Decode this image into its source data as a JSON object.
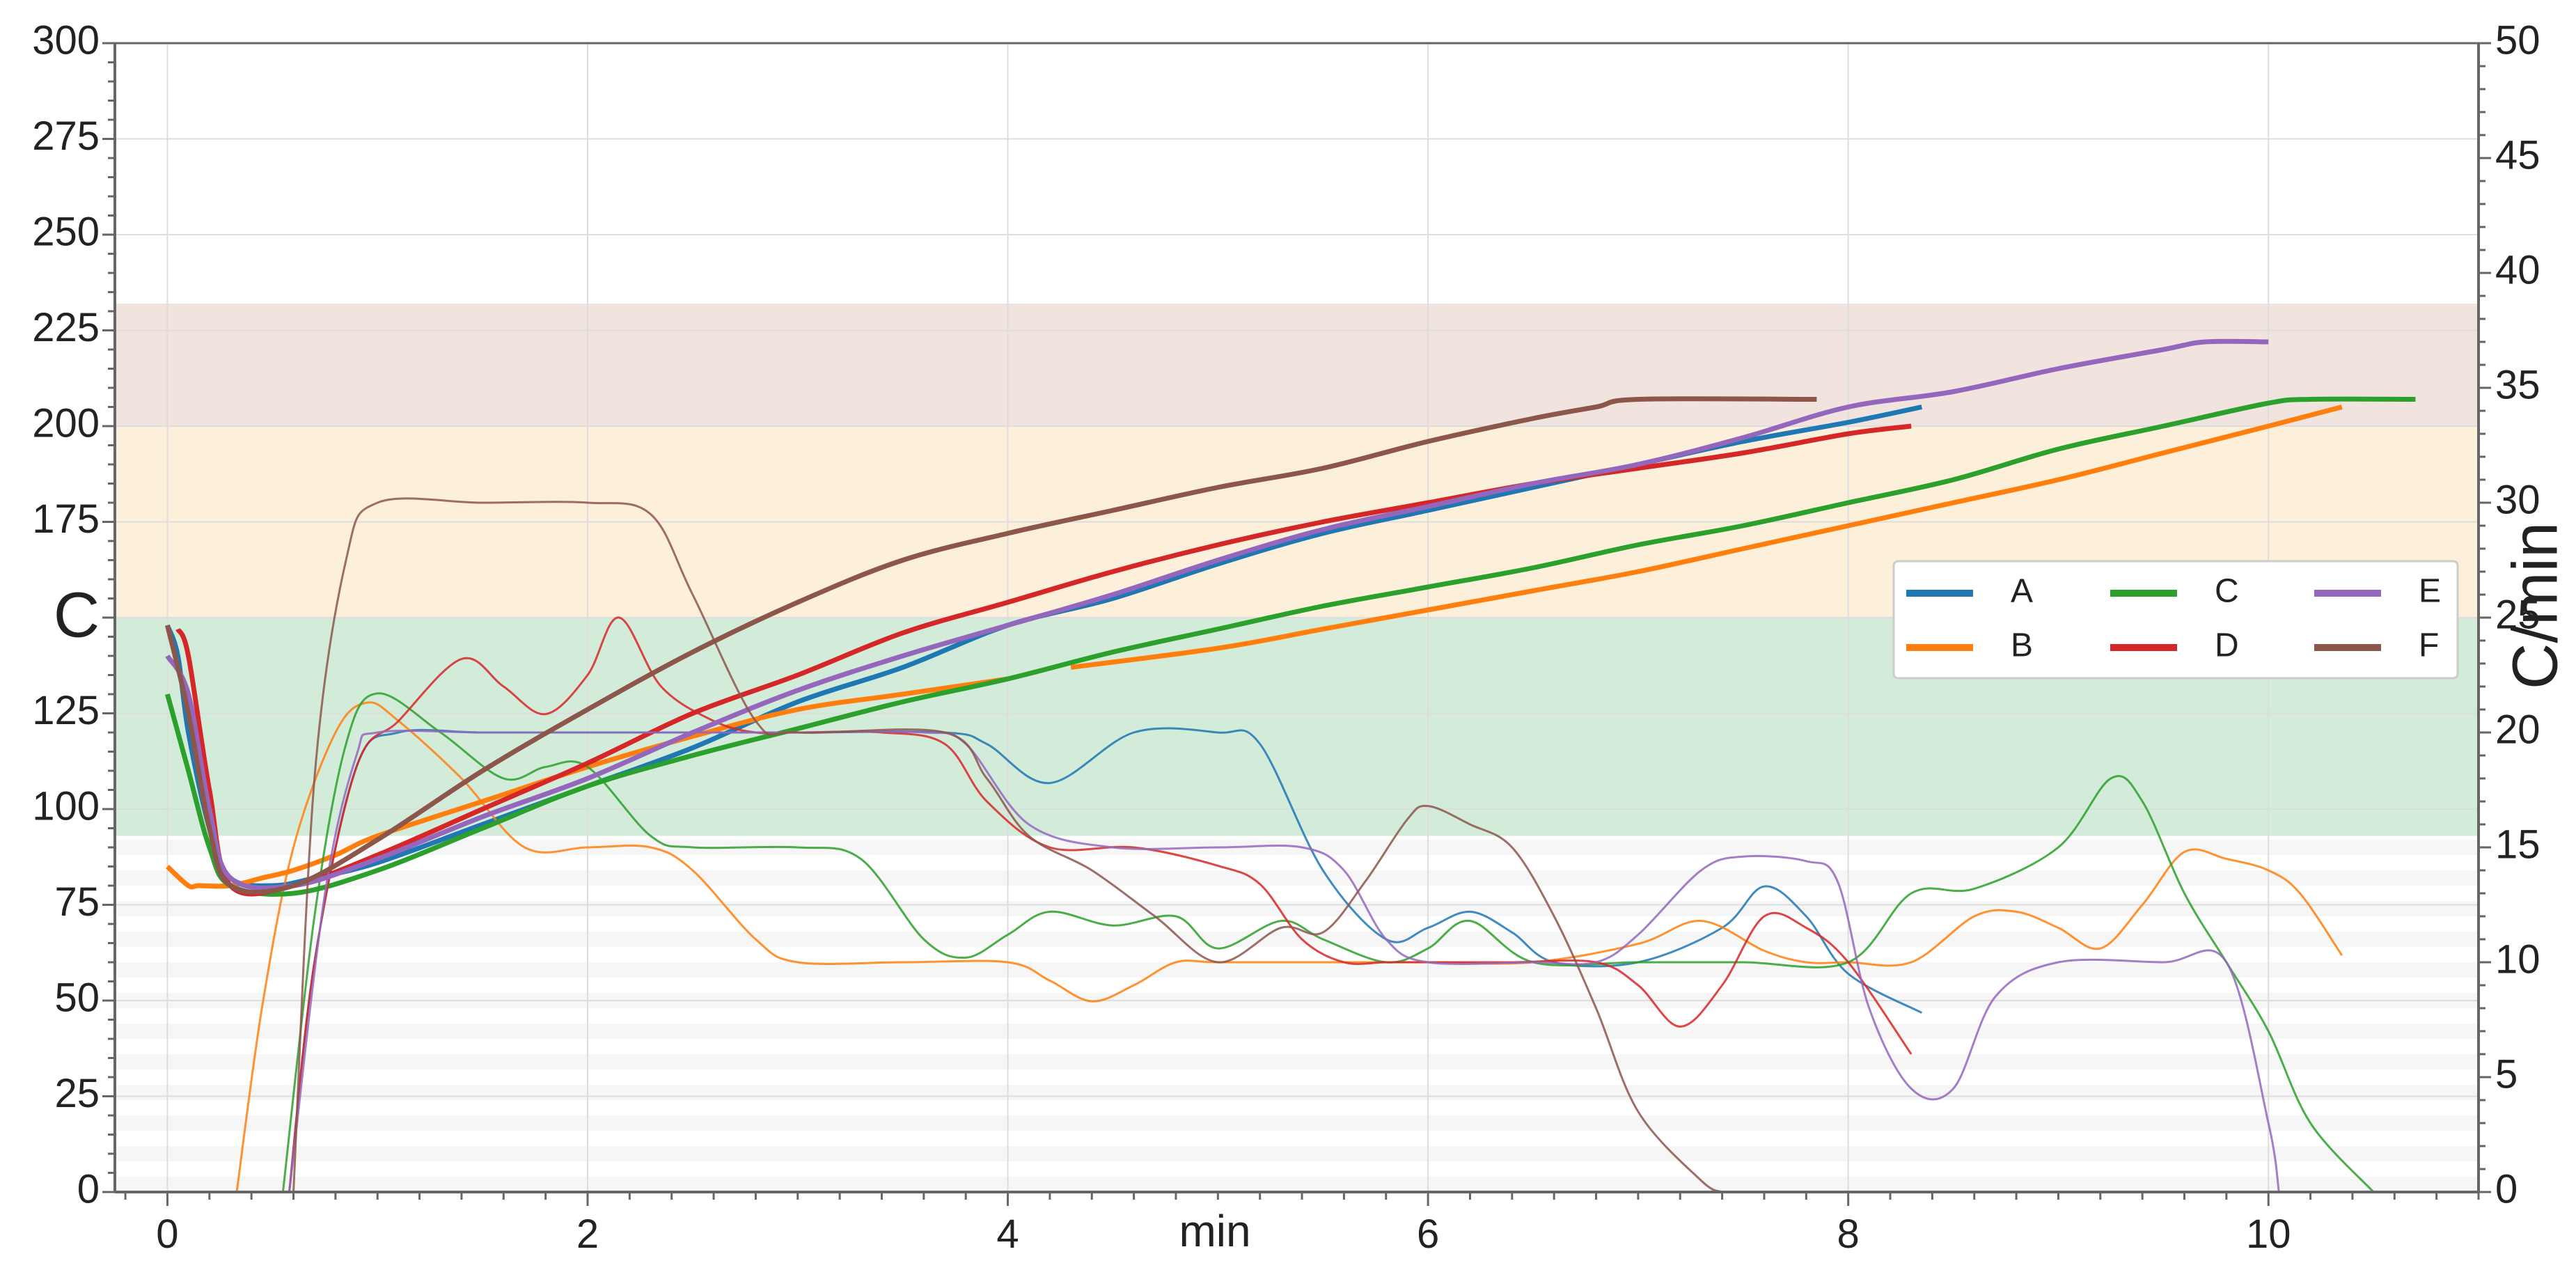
{
  "chart_data": {
    "type": "line",
    "xlabel": "min",
    "ylabel": "C",
    "y2label": "C/min",
    "xlim": [
      -0.25,
      11.0
    ],
    "ylim": [
      0,
      300
    ],
    "y2lim": [
      0,
      50
    ],
    "xticks": [
      "0",
      "2",
      "4",
      "6",
      "8",
      "10"
    ],
    "xtick_values": [
      0,
      2,
      4,
      6,
      8,
      10
    ],
    "yticks": [
      "0",
      "25",
      "50",
      "75",
      "100",
      "125",
      "175",
      "200",
      "225",
      "250",
      "275",
      "300"
    ],
    "ytick_values": [
      0,
      25,
      50,
      75,
      100,
      125,
      175,
      200,
      225,
      250,
      275,
      300
    ],
    "y2ticks": [
      "0",
      "5",
      "10",
      "15",
      "20",
      "25",
      "30",
      "35",
      "40",
      "45",
      "50"
    ],
    "y2tick_values": [
      0,
      5,
      10,
      15,
      20,
      25,
      30,
      35,
      40,
      45,
      50
    ],
    "grid": true,
    "legend_position": "right",
    "bands": [
      {
        "from": 200,
        "to": 232,
        "color": "#f1e4df"
      },
      {
        "from": 150,
        "to": 200,
        "color": "#fdf0db"
      },
      {
        "from": 93,
        "to": 150,
        "color": "#d3ecda"
      }
    ],
    "series": [
      {
        "name": "A",
        "color": "#1f77b4",
        "temperature": {
          "x": [
            0,
            0.05,
            0.1,
            0.2,
            0.3,
            0.5,
            0.7,
            1.0,
            1.5,
            2.0,
            2.5,
            3.0,
            3.5,
            4.0,
            4.5,
            5.0,
            5.5,
            6.0,
            6.5,
            7.0,
            7.5,
            8.0,
            8.35
          ],
          "y": [
            148,
            140,
            120,
            95,
            82,
            80,
            82,
            86,
            96,
            106,
            116,
            128,
            137,
            148,
            155,
            164,
            172,
            178,
            184,
            190,
            196,
            201,
            205
          ]
        },
        "rate": {
          "x": [
            0.58,
            0.7,
            0.9,
            1.1,
            1.5,
            2.0,
            2.5,
            3.0,
            3.7,
            3.9,
            4.2,
            4.6,
            5.0,
            5.2,
            5.5,
            5.8,
            6.0,
            6.2,
            6.4,
            6.6,
            7.0,
            7.4,
            7.6,
            7.8,
            8.0,
            8.35
          ],
          "y": [
            0,
            10,
            18.5,
            20,
            20,
            20,
            20,
            20,
            20,
            19.5,
            17.8,
            20,
            20,
            19.5,
            14,
            11,
            11.5,
            12.2,
            11.3,
            10,
            10,
            11.5,
            13.3,
            12,
            9.5,
            7.8
          ]
        }
      },
      {
        "name": "B",
        "color": "#ff7f0e",
        "temperature": {
          "x": [
            0,
            0.1,
            0.15,
            0.3,
            0.45,
            0.6,
            0.8,
            1.0,
            1.5,
            2.0,
            2.5,
            3.0,
            3.5,
            4.0
          ],
          "y": [
            85,
            80,
            80,
            80,
            82,
            84,
            88,
            93,
            102,
            111,
            119,
            126,
            130,
            134
          ]
        },
        "temperature2": {
          "x": [
            4.3,
            5.0,
            5.5,
            6.0,
            6.5,
            7.0,
            7.5,
            8.0,
            8.5,
            9.0,
            9.5,
            10.0,
            10.35
          ],
          "y": [
            137,
            142,
            147,
            152,
            157,
            162,
            168,
            174,
            180,
            186,
            193,
            200,
            205
          ]
        },
        "rate": {
          "x": [
            0.33,
            0.45,
            0.6,
            0.8,
            0.95,
            1.1,
            1.4,
            1.7,
            2.0,
            2.3,
            2.5,
            2.8,
            3.0,
            3.5,
            4.0,
            4.2,
            4.4,
            4.6,
            4.8,
            5.0,
            5.5,
            6.0,
            6.5,
            7.0,
            7.3,
            7.6,
            7.8,
            8.0,
            8.3,
            8.6,
            8.8,
            9.0,
            9.2,
            9.4,
            9.6,
            9.8,
            10.0,
            10.15,
            10.35
          ],
          "y": [
            0,
            8,
            15,
            20,
            21.3,
            20.5,
            18,
            15,
            15,
            15,
            14,
            11,
            10,
            10,
            10,
            9.2,
            8.3,
            9,
            10,
            10,
            10,
            10,
            10,
            10.8,
            11.8,
            10.5,
            10,
            10,
            10,
            12,
            12.2,
            11.5,
            10.6,
            12.5,
            14.8,
            14.5,
            14,
            13,
            10.3
          ]
        }
      },
      {
        "name": "C",
        "color": "#2ca02c",
        "temperature": {
          "x": [
            0,
            0.1,
            0.2,
            0.3,
            0.6,
            1.0,
            1.5,
            2.0,
            2.5,
            3.0,
            3.5,
            4.0,
            4.5,
            5.0,
            5.5,
            6.0,
            6.5,
            7.0,
            7.5,
            8.0,
            8.5,
            9.0,
            9.5,
            10.0,
            10.2,
            10.7
          ],
          "y": [
            130,
            110,
            90,
            80,
            78,
            84,
            95,
            106,
            114,
            121,
            128,
            134,
            141,
            147,
            153,
            158,
            163,
            169,
            174,
            180,
            186,
            194,
            200,
            206,
            207,
            207
          ]
        },
        "rate": {
          "x": [
            0.55,
            0.7,
            0.85,
            1.0,
            1.3,
            1.6,
            1.8,
            2.0,
            2.3,
            2.5,
            3.0,
            3.3,
            3.6,
            3.8,
            4.0,
            4.2,
            4.5,
            4.8,
            5.0,
            5.3,
            5.5,
            5.8,
            6.0,
            6.2,
            6.5,
            7.0,
            7.5,
            8.0,
            8.3,
            8.6,
            9.0,
            9.25,
            9.4,
            9.6,
            9.8,
            10.0,
            10.2,
            10.5
          ],
          "y": [
            0,
            12,
            19.5,
            21.7,
            20,
            18,
            18.5,
            18.5,
            15.5,
            15,
            15,
            14.5,
            11,
            10.2,
            11.2,
            12.2,
            11.6,
            12,
            10.6,
            11.8,
            11,
            10,
            10.6,
            11.8,
            10,
            10,
            10,
            10,
            13,
            13.2,
            15,
            18,
            17,
            13,
            10,
            7,
            3,
            0
          ]
        }
      },
      {
        "name": "D",
        "color": "#d62728",
        "temperature": {
          "x": [
            0.05,
            0.1,
            0.2,
            0.3,
            0.6,
            1.0,
            1.5,
            2.0,
            2.5,
            3.0,
            3.5,
            4.0,
            4.5,
            5.0,
            5.5,
            6.0,
            6.5,
            7.0,
            7.5,
            8.0,
            8.3
          ],
          "y": [
            147,
            140,
            105,
            80,
            80,
            88,
            100,
            112,
            125,
            135,
            146,
            154,
            162,
            169,
            175,
            180,
            185,
            189,
            193,
            198,
            200
          ]
        },
        "rate": {
          "x": [
            0.58,
            0.7,
            0.9,
            1.1,
            1.4,
            1.6,
            1.8,
            2.0,
            2.15,
            2.35,
            2.6,
            2.8,
            3.0,
            3.4,
            3.7,
            3.9,
            4.2,
            4.6,
            5.0,
            5.2,
            5.4,
            5.6,
            5.8,
            6.0,
            6.4,
            6.8,
            7.0,
            7.2,
            7.4,
            7.6,
            7.8,
            8.0,
            8.3
          ],
          "y": [
            0,
            10,
            18.5,
            20.5,
            23.2,
            22,
            20.8,
            22.5,
            25,
            22,
            20.5,
            20,
            20,
            20,
            19.5,
            17,
            15,
            15,
            14.2,
            13.4,
            11,
            10,
            10,
            10,
            10,
            10,
            9,
            7.2,
            9,
            12,
            11.5,
            10,
            6
          ]
        }
      },
      {
        "name": "E",
        "color": "#9467bd",
        "temperature": {
          "x": [
            0,
            0.1,
            0.2,
            0.3,
            0.6,
            1.0,
            1.5,
            2.0,
            2.5,
            3.0,
            3.5,
            4.0,
            4.5,
            5.0,
            5.5,
            6.0,
            6.5,
            7.0,
            7.5,
            8.0,
            8.5,
            9.0,
            9.5,
            9.7,
            10.0
          ],
          "y": [
            140,
            130,
            100,
            82,
            80,
            87,
            98,
            108,
            120,
            131,
            140,
            148,
            156,
            165,
            173,
            179,
            185,
            190,
            197,
            205,
            209,
            215,
            220,
            222,
            222
          ]
        },
        "rate": {
          "x": [
            0.58,
            0.75,
            0.9,
            1.0,
            1.5,
            2.0,
            2.5,
            3.0,
            3.6,
            3.8,
            4.1,
            4.5,
            5.0,
            5.4,
            5.6,
            5.8,
            6.0,
            6.5,
            6.8,
            7.0,
            7.3,
            7.5,
            7.8,
            7.95,
            8.1,
            8.3,
            8.5,
            8.7,
            9.0,
            9.5,
            9.8,
            10.0,
            10.05
          ],
          "y": [
            0,
            13,
            19,
            20,
            20,
            20,
            20,
            20,
            20,
            19.5,
            16,
            15,
            15,
            15,
            14,
            11,
            10,
            10,
            10,
            11.2,
            14,
            14.6,
            14.4,
            13.5,
            8,
            4.5,
            4.5,
            8.5,
            10,
            10,
            10,
            3,
            0
          ]
        }
      },
      {
        "name": "F",
        "color": "#8c564b",
        "temperature": {
          "x": [
            0,
            0.1,
            0.2,
            0.3,
            0.6,
            1.0,
            1.5,
            2.0,
            2.5,
            3.0,
            3.5,
            4.0,
            4.5,
            5.0,
            5.5,
            6.0,
            6.5,
            6.8,
            7.0,
            7.85
          ],
          "y": [
            148,
            125,
            95,
            80,
            80,
            92,
            110,
            126,
            141,
            154,
            165,
            172,
            178,
            184,
            189,
            196,
            202,
            205,
            207,
            207
          ]
        },
        "rate": {
          "x": [
            0.6,
            0.7,
            0.85,
            1.0,
            1.5,
            2.0,
            2.3,
            2.5,
            2.8,
            3.0,
            3.7,
            3.9,
            4.1,
            4.4,
            4.7,
            5.0,
            5.3,
            5.5,
            5.7,
            5.9,
            6.0,
            6.2,
            6.4,
            6.6,
            6.8,
            7.0,
            7.3,
            7.4
          ],
          "y": [
            0,
            18,
            27.5,
            30,
            30,
            30,
            29.5,
            26,
            20.5,
            20,
            20,
            18,
            15.5,
            14,
            12,
            10,
            11.5,
            11.3,
            13.5,
            16.2,
            16.8,
            16,
            15,
            12,
            8,
            3.5,
            0.5,
            0
          ]
        }
      }
    ]
  }
}
